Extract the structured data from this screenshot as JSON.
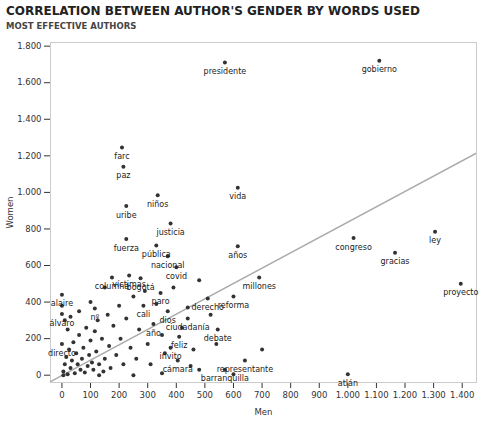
{
  "chart_data": {
    "type": "scatter",
    "title": "CORRELATION BETWEEN AUTHOR'S GENDER BY WORDS USED",
    "subtitle": "MOST EFFECTIVE AUTHORS",
    "x_label": "Men",
    "y_label": "Women",
    "color": "#333333",
    "grid": false,
    "xlim": [
      -40,
      1450
    ],
    "ylim": [
      -40,
      1820
    ],
    "xticks": [
      0,
      100,
      200,
      300,
      400,
      500,
      600,
      700,
      800,
      900,
      {
        "value": 1000,
        "label": "1.000"
      },
      {
        "value": 1100,
        "label": "1.100"
      },
      {
        "value": 1200,
        "label": "1.200"
      },
      {
        "value": 1300,
        "label": "1.300"
      },
      {
        "value": 1400,
        "label": "1.400"
      }
    ],
    "yticks": [
      0,
      200,
      400,
      600,
      800,
      {
        "value": 1000,
        "label": "1.000"
      },
      {
        "value": 1200,
        "label": "1.200"
      },
      {
        "value": 1400,
        "label": "1.400"
      },
      {
        "value": 1600,
        "label": "1.600"
      },
      {
        "value": 1800,
        "label": "1.800"
      }
    ],
    "trend_line": {
      "x": [
        -40,
        1450
      ],
      "y": [
        -35,
        1215
      ],
      "color": "#aaaaaa"
    },
    "x": [
      570,
      1110,
      1305,
      1395,
      1165,
      1020,
      1000,
      640,
      570,
      615,
      615,
      690,
      600,
      545,
      510,
      440,
      410,
      405,
      380,
      400,
      370,
      380,
      330,
      335,
      345,
      370,
      320,
      285,
      275,
      235,
      225,
      225,
      215,
      210,
      175,
      0,
      115,
      0,
      0,
      5,
      10,
      15,
      20,
      25,
      30,
      35,
      40,
      45,
      50,
      55,
      60,
      65,
      70,
      75,
      80,
      85,
      90,
      95,
      100,
      105,
      110,
      115,
      120,
      125,
      130,
      140,
      145,
      150,
      160,
      165,
      170,
      180,
      190,
      200,
      205,
      215,
      225,
      240,
      250,
      260,
      270,
      290,
      300,
      310,
      330,
      350,
      360,
      390,
      420,
      440,
      460,
      480,
      520,
      540,
      10,
      20,
      0,
      30,
      60,
      5,
      130,
      250,
      350,
      450,
      600,
      700,
      480,
      150,
      100
    ],
    "values": [
      1710,
      1720,
      785,
      500,
      670,
      750,
      5,
      80,
      30,
      1025,
      705,
      535,
      430,
      250,
      420,
      310,
      210,
      80,
      150,
      590,
      650,
      830,
      710,
      985,
      450,
      350,
      280,
      380,
      530,
      545,
      745,
      925,
      1140,
      1245,
      535,
      440,
      365,
      335,
      170,
      20,
      60,
      100,
      5,
      140,
      40,
      80,
      180,
      10,
      120,
      60,
      220,
      30,
      90,
      150,
      15,
      260,
      50,
      110,
      190,
      70,
      30,
      240,
      130,
      300,
      60,
      200,
      20,
      90,
      330,
      160,
      40,
      270,
      110,
      380,
      200,
      60,
      310,
      150,
      430,
      90,
      250,
      460,
      170,
      60,
      390,
      220,
      120,
      480,
      260,
      370,
      140,
      30,
      330,
      170,
      300,
      250,
      380,
      320,
      350,
      0,
      0,
      0,
      10,
      50,
      5,
      140,
      520,
      480,
      400
    ],
    "labels": [
      "presidente",
      "gobierno",
      "ley",
      "proyecto",
      "gracias",
      "congreso",
      "atlán",
      "representante",
      "barranquilla",
      "vida",
      "años",
      "millones",
      "reforma",
      "debate",
      "derecho",
      "ciudadanía",
      "feliz",
      "cámara",
      "invito",
      "covid",
      "nacional",
      "justicia",
      "pública",
      "niños",
      "paro",
      "dios",
      "año",
      "cali",
      "bogotá",
      "víctimas",
      "fuerza",
      "uribe",
      "paz",
      "farc",
      "columna",
      "alaire",
      "nº",
      "álvaro",
      "directo",
      null,
      null,
      null,
      null,
      null,
      null,
      null,
      null,
      null,
      null,
      null,
      null,
      null,
      null,
      null,
      null,
      null,
      null,
      null,
      null,
      null,
      null,
      null,
      null,
      null,
      null,
      null,
      null,
      null,
      null,
      null,
      null,
      null,
      null,
      null,
      null,
      null,
      null,
      null,
      null,
      null,
      null,
      null,
      null,
      null,
      null,
      null,
      null,
      null,
      null,
      null,
      null,
      null,
      null,
      null,
      null,
      null,
      null,
      null,
      null,
      null,
      null,
      null,
      null,
      null,
      null,
      null,
      null,
      null,
      null
    ]
  }
}
